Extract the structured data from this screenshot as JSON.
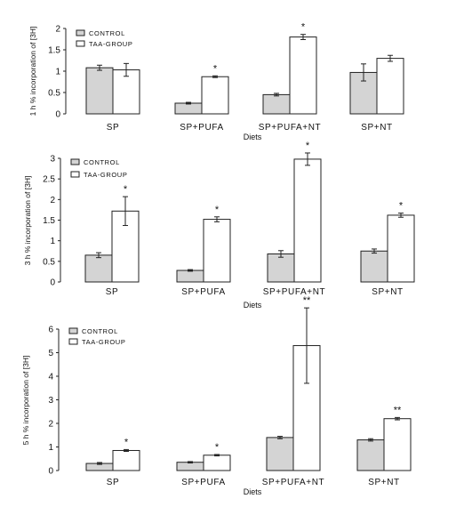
{
  "chart_data": [
    {
      "type": "bar",
      "ylabel": "1 h % incorporation of [3H]",
      "xlabel": "Diets",
      "ylim": [
        0,
        2
      ],
      "yticks": [
        0,
        0.5,
        1,
        1.5,
        2
      ],
      "ytick_labels": [
        "0",
        "0.5",
        "1",
        "1.5",
        "2"
      ],
      "categories": [
        "SP",
        "SP+PUFA",
        "SP+PUFA+NT",
        "SP+NT"
      ],
      "legend": "top-left",
      "series": [
        {
          "name": "CONTROL",
          "values": [
            1.08,
            0.25,
            0.45,
            0.97
          ],
          "errors": [
            0.06,
            0.02,
            0.03,
            0.2
          ],
          "color": "#d4d4d4"
        },
        {
          "name": "TAA-GROUP",
          "values": [
            1.03,
            0.87,
            1.8,
            1.3
          ],
          "errors": [
            0.15,
            0.02,
            0.06,
            0.07
          ],
          "color": "#ffffff"
        }
      ],
      "significance": [
        "",
        "*",
        "*",
        ""
      ]
    },
    {
      "type": "bar",
      "ylabel": "3 h % incorporation of [3H]",
      "xlabel": "Diets",
      "ylim": [
        0,
        3
      ],
      "yticks": [
        0,
        0.5,
        1,
        1.5,
        2,
        2.5,
        3
      ],
      "ytick_labels": [
        "0",
        "0.5",
        "1",
        "1.5",
        "2",
        "2.5",
        "3"
      ],
      "categories": [
        "SP",
        "SP+PUFA",
        "SP+PUFA+NT",
        "SP+NT"
      ],
      "legend": "top-left",
      "series": [
        {
          "name": "CONTROL",
          "values": [
            0.65,
            0.28,
            0.68,
            0.75
          ],
          "errors": [
            0.06,
            0.02,
            0.08,
            0.05
          ],
          "color": "#d4d4d4"
        },
        {
          "name": "TAA-GROUP",
          "values": [
            1.72,
            1.52,
            2.98,
            1.62
          ],
          "errors": [
            0.35,
            0.06,
            0.15,
            0.05
          ],
          "color": "#ffffff"
        }
      ],
      "significance": [
        "*",
        "*",
        "*",
        "*"
      ]
    },
    {
      "type": "bar",
      "ylabel": "5 h % incorporation of [3H]",
      "xlabel": "Diets",
      "ylim": [
        0,
        6
      ],
      "yticks": [
        0,
        1,
        2,
        3,
        4,
        5,
        6
      ],
      "ytick_labels": [
        "0",
        "1",
        "2",
        "3",
        "4",
        "5",
        "6"
      ],
      "categories": [
        "SP",
        "SP+PUFA",
        "SP+PUFA+NT",
        "SP+NT"
      ],
      "legend": "top-left",
      "series": [
        {
          "name": "CONTROL",
          "values": [
            0.3,
            0.35,
            1.4,
            1.3
          ],
          "errors": [
            0.04,
            0.03,
            0.05,
            0.05
          ],
          "color": "#d4d4d4"
        },
        {
          "name": "TAA-GROUP",
          "values": [
            0.85,
            0.65,
            5.3,
            2.2
          ],
          "errors": [
            0.04,
            0.03,
            1.6,
            0.05
          ],
          "color": "#ffffff"
        }
      ],
      "significance": [
        "*",
        "*",
        "**",
        "**"
      ]
    }
  ]
}
